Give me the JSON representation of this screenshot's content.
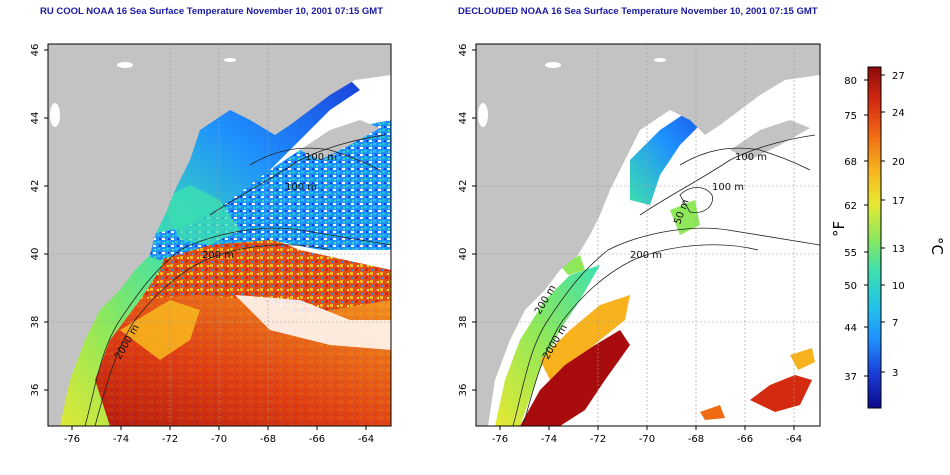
{
  "panels": [
    {
      "title": "RU COOL NOAA 16 Sea Surface Temperature November 10, 2001 07:15 GMT",
      "xticks": [
        "-76",
        "-74",
        "-72",
        "-70",
        "-68",
        "-66",
        "-64"
      ],
      "yticks": [
        "36",
        "38",
        "40",
        "42",
        "44",
        "46"
      ],
      "contour_labels": [
        "100 m",
        "100 m",
        "200 m",
        "2000 m"
      ],
      "clouds_removed": false
    },
    {
      "title": "DECLOUDED NOAA 16 Sea Surface Temperature November 10, 2001 07:15 GMT",
      "xticks": [
        "-76",
        "-74",
        "-72",
        "-70",
        "-68",
        "-66",
        "-64"
      ],
      "yticks": [
        "36",
        "38",
        "40",
        "42",
        "44",
        "46"
      ],
      "contour_labels": [
        "100 m",
        "100 m",
        "50 m",
        "200 m",
        "200 m",
        "2000 m"
      ],
      "clouds_removed": true
    }
  ],
  "colorbar": {
    "fahrenheit_ticks": [
      "80",
      "75",
      "68",
      "62",
      "55",
      "50",
      "44",
      "37"
    ],
    "celsius_ticks": [
      "27",
      "24",
      "20",
      "17",
      "13",
      "10",
      "7",
      "3"
    ],
    "fahrenheit_label": "°F",
    "celsius_label": "°C",
    "colors": [
      "#0a0a8c",
      "#1b3cd8",
      "#1e90ff",
      "#22c4e8",
      "#3ce0b0",
      "#8fe85a",
      "#e8e832",
      "#f7b21e",
      "#f06a14",
      "#d42a10",
      "#8c0a0a"
    ]
  },
  "map_colors": {
    "land": "#c3c3c3",
    "no_data": "#ffffff",
    "contour": "#222222",
    "grid": "#9a9a9a"
  }
}
